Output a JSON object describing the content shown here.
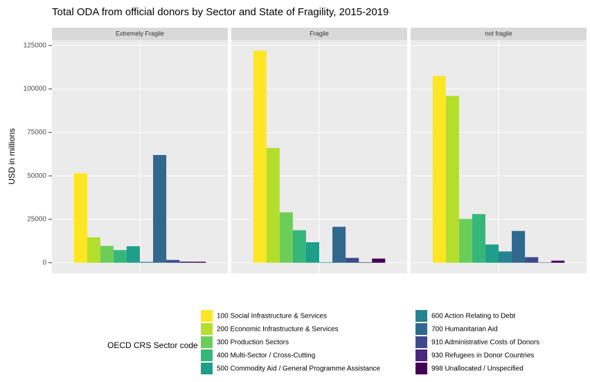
{
  "chart_data": {
    "type": "bar",
    "title": "Total ODA from official donors by Sector and State of Fragility, 2015-2019",
    "y_label": "USD in millions",
    "legend_title": "OECD CRS Sector code",
    "facets": [
      "Extremely Fragile",
      "Fragile",
      "not fragile"
    ],
    "ylim": [
      -6100,
      128100
    ],
    "yticks": [
      0,
      25000,
      50000,
      75000,
      100000,
      125000
    ],
    "grid": true,
    "series": [
      {
        "name": "100 Social Infrastructure & Services",
        "color": "#FDE725",
        "values": [
          51500,
          122000,
          107500
        ]
      },
      {
        "name": "200 Economic Infrastructure & Services",
        "color": "#B4DE2C",
        "values": [
          14600,
          66000,
          96000
        ]
      },
      {
        "name": "300 Production Sectors",
        "color": "#6DCD59",
        "values": [
          9700,
          29000,
          25200
        ]
      },
      {
        "name": "400 Multi-Sector / Cross-Cutting",
        "color": "#35B779",
        "values": [
          7300,
          18700,
          28000
        ]
      },
      {
        "name": "500 Commodity Aid / General Programme Assistance",
        "color": "#1F9E89",
        "values": [
          9500,
          11800,
          10500
        ]
      },
      {
        "name": "600 Action Relating to Debt",
        "color": "#26828E",
        "values": [
          500,
          300,
          6500
        ]
      },
      {
        "name": "700 Humanitarian Aid",
        "color": "#31688E",
        "values": [
          62000,
          20700,
          18300
        ]
      },
      {
        "name": "910 Administrative Costs of Donors",
        "color": "#3E4A89",
        "values": [
          1600,
          2800,
          3200
        ]
      },
      {
        "name": "930 Refugees in Donor Countries",
        "color": "#482878",
        "values": [
          700,
          300,
          200
        ]
      },
      {
        "name": "998 Unallocated / Unspecified",
        "color": "#440154",
        "values": [
          600,
          2400,
          1200
        ]
      }
    ]
  }
}
